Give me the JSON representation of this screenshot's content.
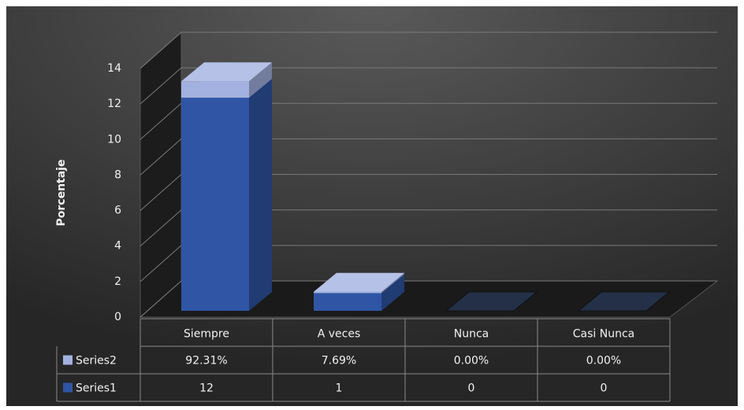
{
  "chart_data": {
    "type": "bar",
    "stacked": true,
    "y_label": "Porcentaje",
    "categories": [
      "Siempre",
      "A veces",
      "Nunca",
      "Casi Nunca"
    ],
    "series": [
      {
        "name": "Series1",
        "color": "#2f55a4",
        "values": [
          12,
          1,
          0,
          0
        ]
      },
      {
        "name": "Series2",
        "color": "#a3b1e0",
        "values": [
          0.9231,
          0.0769,
          0,
          0
        ],
        "value_labels": [
          "92.31%",
          "7.69%",
          "0.00%",
          "0.00%"
        ]
      }
    ],
    "ylim": [
      0,
      14
    ],
    "yticks": [
      0,
      2,
      4,
      6,
      8,
      10,
      12,
      14
    ],
    "grid": true,
    "legend": "table"
  }
}
